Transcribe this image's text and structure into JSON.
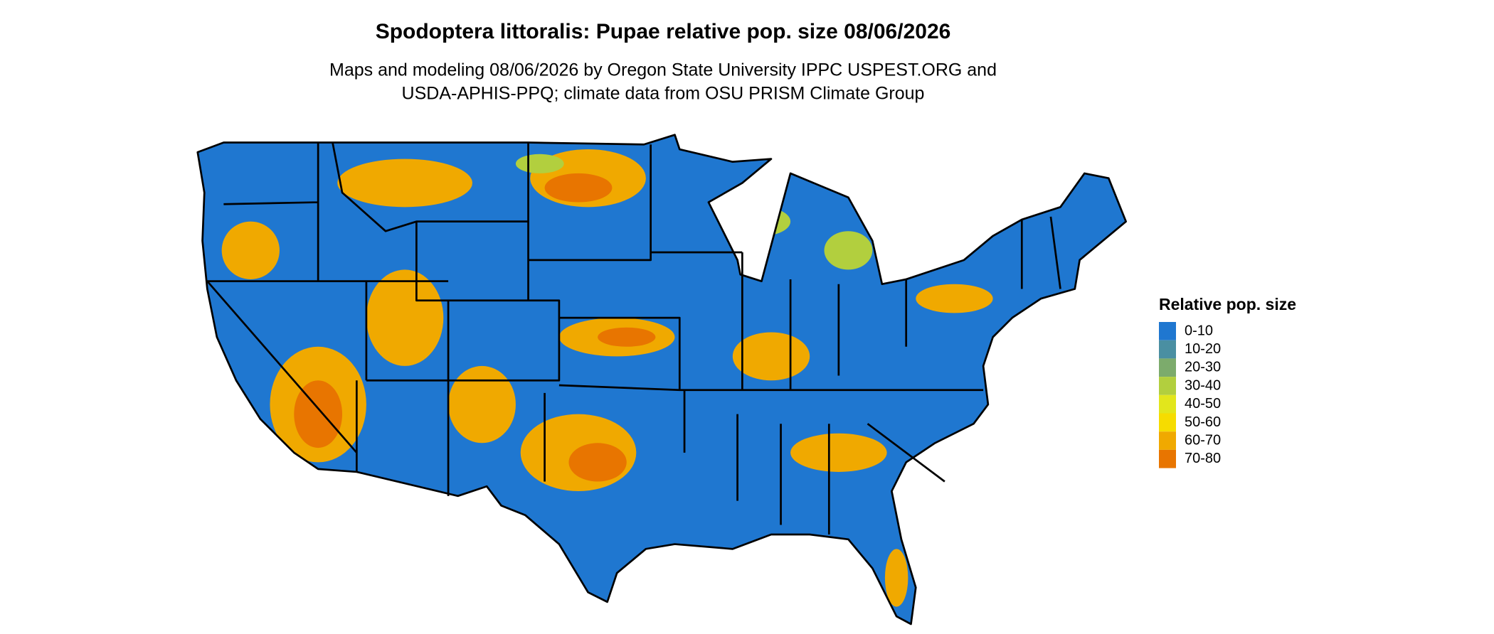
{
  "title": "Spodoptera littoralis: Pupae relative pop. size 08/06/2026",
  "subtitle": [
    "Maps and modeling 08/06/2026 by Oregon State University IPPC USPEST.ORG and",
    "USDA-APHIS-PPQ; climate data from OSU PRISM Climate Group"
  ],
  "legend": {
    "title": "Relative pop. size",
    "items": [
      {
        "label": "0-10",
        "color": "#1f77d0"
      },
      {
        "label": "10-20",
        "color": "#4a8fa2"
      },
      {
        "label": "20-30",
        "color": "#7cab6c"
      },
      {
        "label": "30-40",
        "color": "#b2cf3e"
      },
      {
        "label": "40-50",
        "color": "#e2e61c"
      },
      {
        "label": "50-60",
        "color": "#f6dc00"
      },
      {
        "label": "60-70",
        "color": "#f0a900"
      },
      {
        "label": "70-80",
        "color": "#e87500"
      }
    ]
  }
}
